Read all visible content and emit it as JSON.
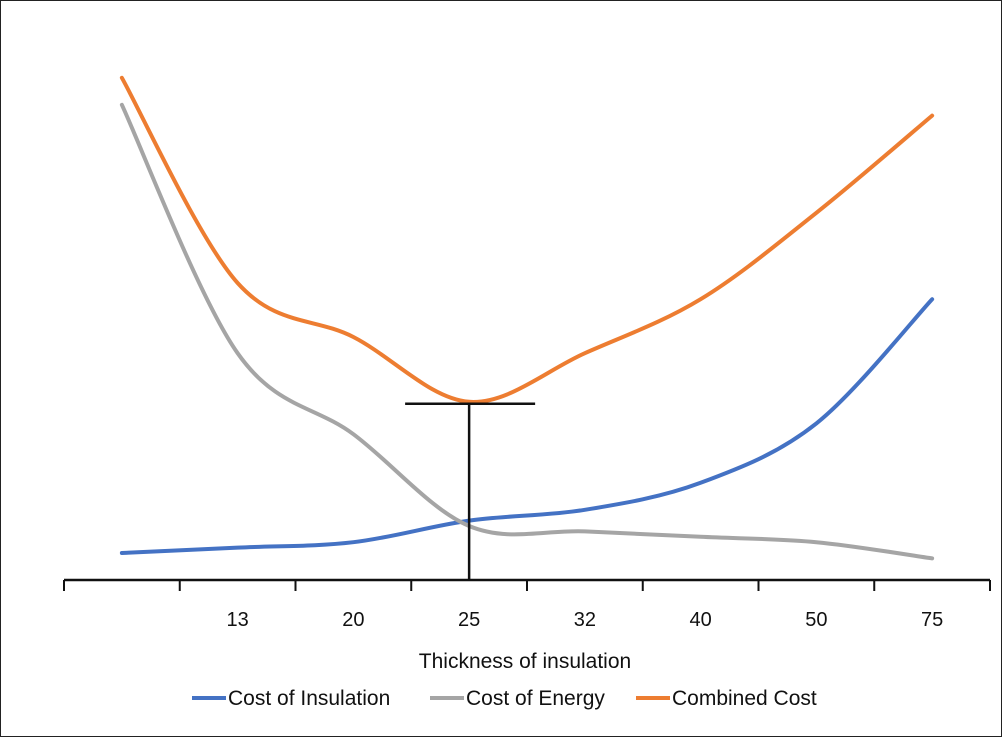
{
  "chart_data": {
    "type": "line",
    "title": "",
    "xlabel": "Thickness of insulation",
    "ylabel": "",
    "categories": [
      "",
      "13",
      "20",
      "25",
      "32",
      "40",
      "50",
      "75"
    ],
    "ylim": [
      0,
      100
    ],
    "grid": false,
    "legend_position": "bottom",
    "series": [
      {
        "name": "Cost of Insulation",
        "color": "#4472C4",
        "values": [
          5,
          6,
          7,
          11,
          13,
          18,
          29,
          52
        ]
      },
      {
        "name": "Cost of Energy",
        "color": "#A5A5A5",
        "values": [
          88,
          42,
          27,
          10,
          9,
          8,
          7,
          4
        ]
      },
      {
        "name": "Combined Cost",
        "color": "#ED7D31",
        "values": [
          93,
          55,
          45,
          33,
          42,
          52,
          68,
          86
        ]
      }
    ],
    "annotation": {
      "type": "minimum-marker",
      "x_position": 3.5,
      "y_value": 33
    }
  }
}
